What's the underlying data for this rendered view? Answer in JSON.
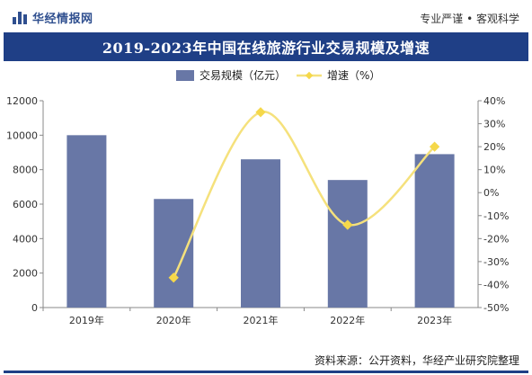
{
  "brand": {
    "name": "华经情报网",
    "slogan": "专业严谨 • 客观科学"
  },
  "source": "资料来源：公开资料，华经产业研究院整理",
  "colors": {
    "bar": "#6877a6",
    "line": "#f5e17c",
    "marker": "#f5d84a",
    "header": "#1f3f86"
  },
  "chart_data": {
    "type": "bar",
    "title": "2019-2023年中国在线旅游行业交易规模及增速",
    "categories": [
      "2019年",
      "2020年",
      "2021年",
      "2022年",
      "2023年"
    ],
    "series": [
      {
        "name": "交易规模（亿元）",
        "type": "bar",
        "axis": "left",
        "values": [
          10000,
          6300,
          8600,
          7400,
          8900
        ]
      },
      {
        "name": "增速（%）",
        "type": "line",
        "axis": "right",
        "values": [
          null,
          -37,
          35,
          -14,
          20
        ]
      }
    ],
    "y_left": {
      "min": 0,
      "max": 12000,
      "ticks": [
        0,
        2000,
        4000,
        6000,
        8000,
        10000,
        12000
      ]
    },
    "y_right": {
      "min": -50,
      "max": 40,
      "ticks": [
        -50,
        -40,
        -30,
        -20,
        -10,
        0,
        10,
        20,
        30,
        40
      ],
      "unit": "%"
    },
    "legend": {
      "position": "top-center"
    },
    "grid": false
  }
}
